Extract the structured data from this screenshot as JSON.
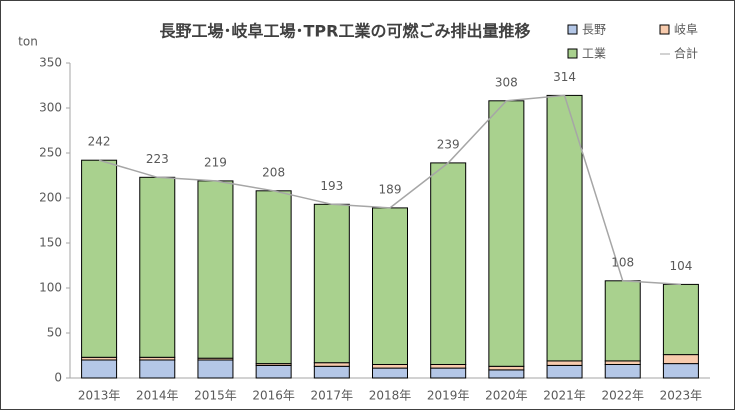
{
  "chart_data": {
    "type": "bar",
    "stacked": true,
    "title": "長野工場･岐阜工場･TPR工業の可燃ごみ排出量推移",
    "y_label": "ton",
    "categories": [
      "2013年",
      "2014年",
      "2015年",
      "2016年",
      "2017年",
      "2018年",
      "2019年",
      "2020年",
      "2021年",
      "2022年",
      "2023年"
    ],
    "series": [
      {
        "name": "長野",
        "color": "#b4c7e7",
        "values": [
          20,
          20,
          20,
          14,
          13,
          11,
          11,
          9,
          14,
          15,
          16
        ]
      },
      {
        "name": "岐阜",
        "color": "#f8cbad",
        "values": [
          3,
          3,
          2,
          2,
          4,
          4,
          4,
          4,
          5,
          4,
          10
        ]
      },
      {
        "name": "工業",
        "color": "#a9d18e",
        "values": [
          219,
          200,
          197,
          192,
          176,
          174,
          224,
          295,
          295,
          89,
          78
        ]
      },
      {
        "name": "合計",
        "type": "line",
        "color": "#a6a6a6",
        "values": [
          242,
          223,
          219,
          208,
          193,
          189,
          239,
          308,
          314,
          108,
          104
        ]
      }
    ],
    "ylim": [
      0,
      350
    ],
    "yticks": [
      0,
      50,
      100,
      150,
      200,
      250,
      300,
      350
    ],
    "legend": "top-right"
  }
}
